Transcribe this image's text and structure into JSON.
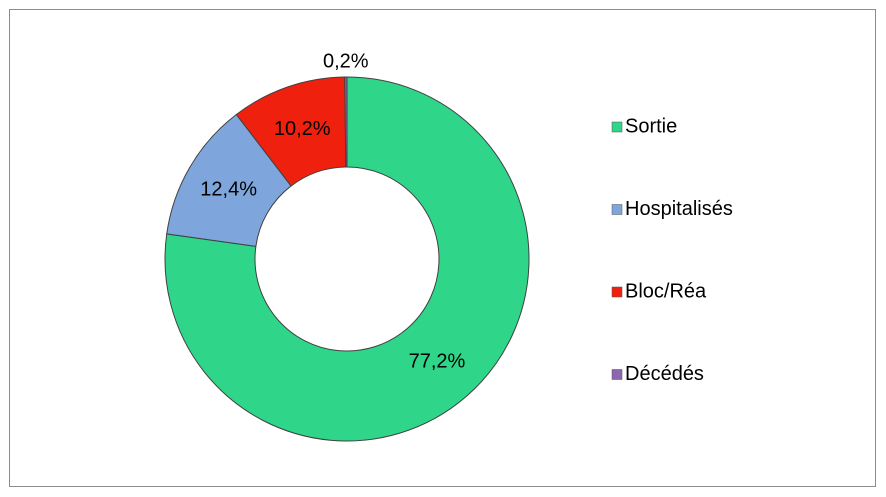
{
  "chart_data": {
    "type": "donut",
    "categories": [
      "Sortie",
      "Hospitalisés",
      "Bloc/Réa",
      "Décédés"
    ],
    "values": [
      77.2,
      12.4,
      10.2,
      0.2
    ],
    "value_labels": [
      "77,2%",
      "12,4%",
      "10,2%",
      "0,2%"
    ],
    "colors": [
      "#2fd68a",
      "#7ea6dc",
      "#f0200f",
      "#8c67b0"
    ],
    "legend": "right"
  }
}
